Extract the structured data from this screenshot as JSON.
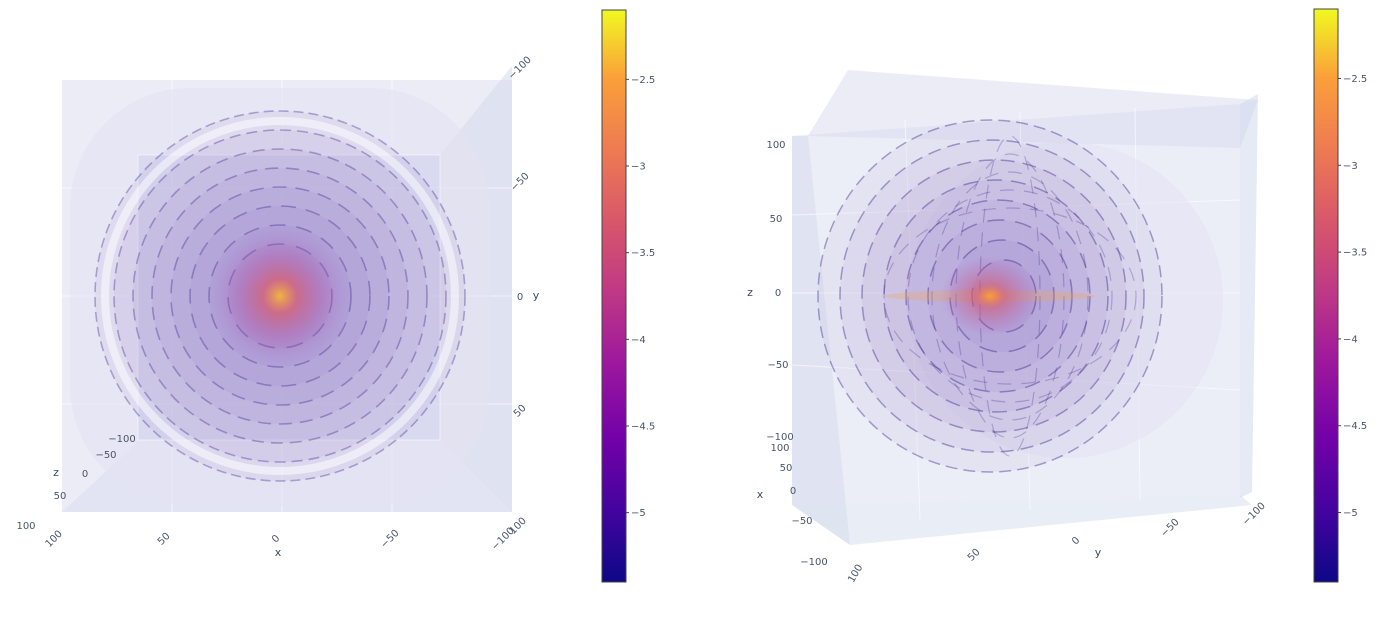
{
  "chart_data": [
    {
      "type": "volume",
      "view": "top",
      "colorscale": "plasma",
      "axes": {
        "x": {
          "label": "x",
          "range": [
            100,
            -100
          ],
          "ticks": [
            "100",
            "50",
            "0",
            "−50",
            "−100"
          ]
        },
        "y": {
          "label": "y",
          "range": [
            -100,
            100
          ],
          "ticks": [
            "−100",
            "−50",
            "0",
            "50",
            "100"
          ]
        },
        "z": {
          "label": "z",
          "range": [
            -100,
            100
          ],
          "ticks": [
            "−100",
            "−50",
            "0",
            "50",
            "100"
          ]
        }
      },
      "colorbar": {
        "range": [
          -5.4,
          -2.1
        ],
        "ticks": [
          "−2.5",
          "−3",
          "−3.5",
          "−4",
          "−4.5",
          "−5"
        ],
        "tick_values": [
          -2.5,
          -3,
          -3.5,
          -4,
          -4.5,
          -5
        ]
      },
      "isosurface_shells": 8
    },
    {
      "type": "volume",
      "view": "oblique",
      "colorscale": "plasma",
      "axes": {
        "x": {
          "label": "x",
          "range": [
            100,
            -100
          ],
          "ticks": [
            "100",
            "50",
            "0",
            "−50",
            "−100"
          ]
        },
        "y": {
          "label": "y",
          "range": [
            100,
            -100
          ],
          "ticks": [
            "50",
            "0",
            "−50",
            "−100",
            "100"
          ]
        },
        "z": {
          "label": "z",
          "range": [
            -100,
            100
          ],
          "ticks": [
            "100",
            "50",
            "0",
            "−50",
            "−100"
          ]
        }
      },
      "colorbar": {
        "range": [
          -5.4,
          -2.1
        ],
        "ticks": [
          "−2.5",
          "−3",
          "−3.5",
          "−4",
          "−4.5",
          "−5"
        ],
        "tick_values": [
          -2.5,
          -3,
          -3.5,
          -4,
          -4.5,
          -5
        ]
      },
      "isosurface_shells": 8
    }
  ]
}
